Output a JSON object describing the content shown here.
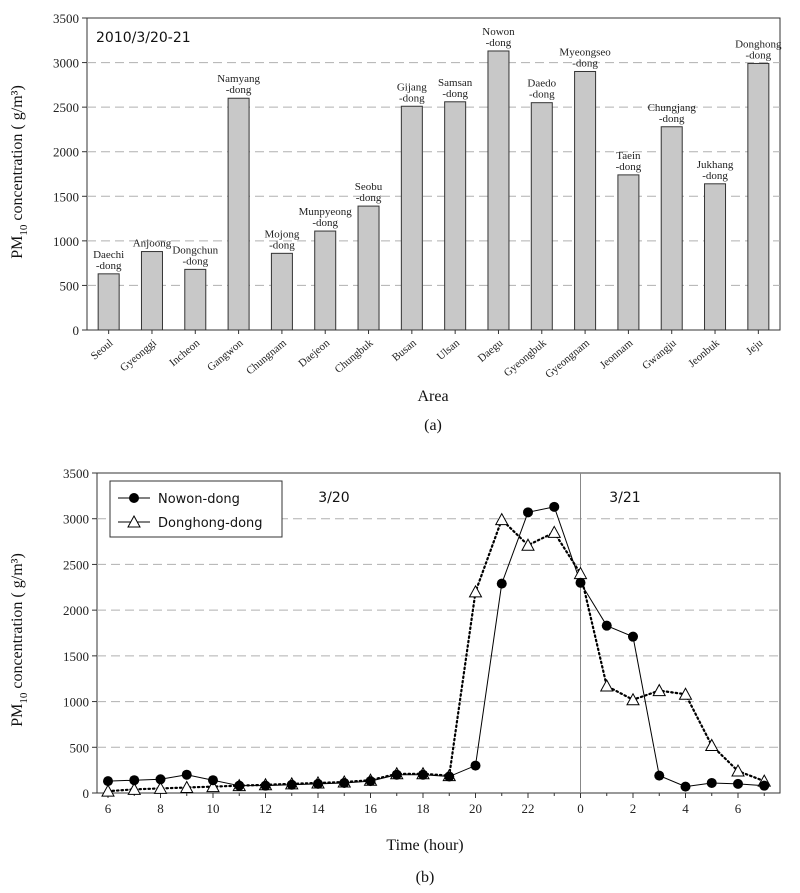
{
  "chart_data": [
    {
      "type": "bar",
      "annotation": "2010/3/20-21",
      "categories": [
        "Seoul",
        "Gyeonggi",
        "Incheon",
        "Gangwon",
        "Chungnam",
        "Daejeon",
        "Chungbuk",
        "Busan",
        "Ulsan",
        "Daegu",
        "Gyeongbuk",
        "Gyeongnam",
        "Jeonnam",
        "Gwangju",
        "Jeonbuk",
        "Jeju"
      ],
      "bar_labels": [
        [
          "Daechi",
          "-dong"
        ],
        [
          "Anjoong"
        ],
        [
          "Dongchun",
          "-dong"
        ],
        [
          "Namyang",
          "-dong"
        ],
        [
          "Mojong",
          "-dong"
        ],
        [
          "Munpyeong",
          "-dong"
        ],
        [
          "Seobu",
          "-dong"
        ],
        [
          "Gijang",
          "-dong"
        ],
        [
          "Samsan",
          "-dong"
        ],
        [
          "Nowon",
          "-dong"
        ],
        [
          "Daedo",
          "-dong"
        ],
        [
          "Myeongseo",
          "-dong"
        ],
        [
          "Taein",
          "-dong"
        ],
        [
          "Chungjang",
          "-dong"
        ],
        [
          "Jukhang",
          "-dong"
        ],
        [
          "Donghong",
          "-dong"
        ]
      ],
      "values": [
        630,
        880,
        680,
        2600,
        860,
        1110,
        1390,
        2510,
        2560,
        3130,
        2550,
        2900,
        1740,
        2280,
        1640,
        2990
      ],
      "ylabel_main": "PM",
      "ylabel_sub": "10",
      "ylabel_rest": " concentration (  g/m³)",
      "xlabel": "Area",
      "ylim": [
        0,
        3500
      ],
      "yticks": [
        0,
        500,
        1000,
        1500,
        2000,
        2500,
        3000,
        3500
      ],
      "grid": "horizontal dashed",
      "caption": "(a)",
      "colors": {
        "bar": "#c8c8c8",
        "grid": "#b0b0b0"
      }
    },
    {
      "type": "line",
      "x_hours": [
        6,
        7,
        8,
        9,
        10,
        11,
        12,
        13,
        14,
        15,
        16,
        17,
        18,
        19,
        20,
        21,
        22,
        23,
        0,
        1,
        2,
        3,
        4,
        5,
        6,
        7
      ],
      "xticks": [
        "6",
        "8",
        "10",
        "12",
        "14",
        "16",
        "18",
        "20",
        "22",
        "0",
        "2",
        "4",
        "6"
      ],
      "series": [
        {
          "name": "Nowon-dong",
          "marker": "circle",
          "values": [
            130,
            140,
            150,
            200,
            140,
            80,
            80,
            90,
            100,
            110,
            130,
            200,
            200,
            180,
            300,
            2290,
            3070,
            3130,
            2300,
            1830,
            1710,
            190,
            70,
            110,
            100,
            80
          ]
        },
        {
          "name": "Donghong-dong",
          "marker": "triangle",
          "values": [
            20,
            40,
            50,
            60,
            70,
            80,
            90,
            100,
            110,
            120,
            140,
            210,
            210,
            190,
            2200,
            2990,
            2710,
            2850,
            2400,
            1170,
            1020,
            1120,
            1080,
            520,
            240,
            130
          ]
        }
      ],
      "date_labels": [
        "3/20",
        "3/21"
      ],
      "ylabel_main": "PM",
      "ylabel_sub": "10",
      "ylabel_rest": " concentration (  g/m³)",
      "xlabel": "Time (hour)",
      "ylim": [
        0,
        3500
      ],
      "yticks": [
        0,
        500,
        1000,
        1500,
        2000,
        2500,
        3000,
        3500
      ],
      "grid": "horizontal dashed",
      "legend": "top-left",
      "caption": "(b)"
    }
  ]
}
